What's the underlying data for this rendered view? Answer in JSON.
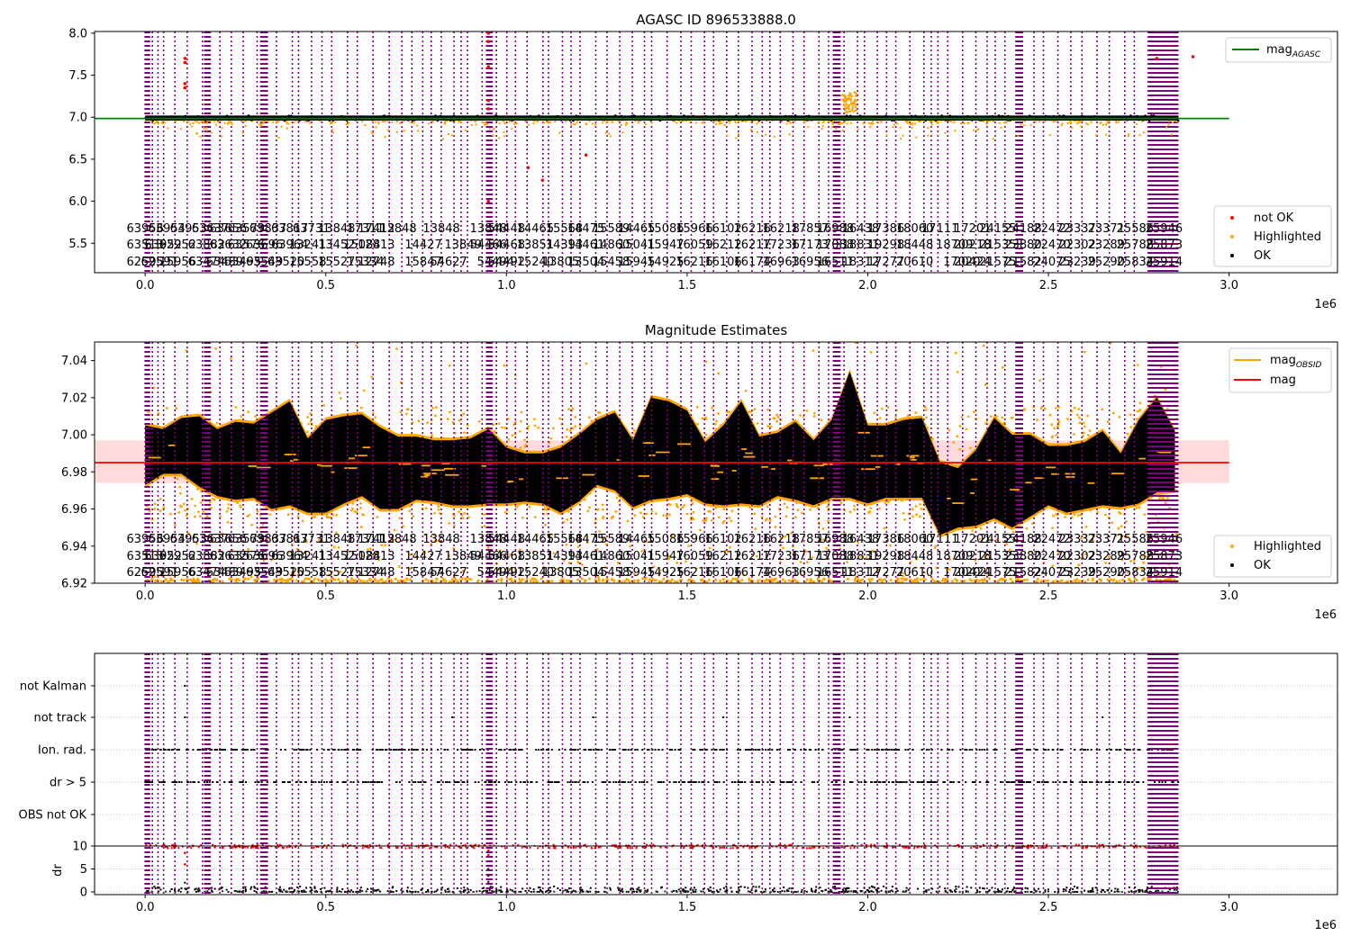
{
  "figure": {
    "offset_label": "1e6"
  },
  "colors": {
    "obsid_line": "#800080",
    "ok": "#000000",
    "highlighted": "#ffa500",
    "not_ok": "#ff0000",
    "mag_agasc": "#008000",
    "mag": "#ff0000",
    "mag_obsid": "#ffa500",
    "band": "#ffb0b0"
  },
  "chart_data": [
    {
      "type": "scatter",
      "title": "AGASC ID 896533888.0",
      "xlabel": "",
      "ylabel": "",
      "xlim": [
        -0.14,
        3.3
      ],
      "ylim": [
        5.15,
        8.02
      ],
      "x_unit_multiplier": "1e6",
      "x_ticks": [
        "0.0",
        "0.5",
        "1.0",
        "1.5",
        "2.0",
        "2.5",
        "3.0"
      ],
      "x_tick_values": [
        0,
        0.5,
        1.0,
        1.5,
        2.0,
        2.5,
        3.0
      ],
      "y_ticks": [
        "5.5",
        "6.0",
        "6.5",
        "7.0",
        "7.5",
        "8.0"
      ],
      "y_tick_values": [
        5.5,
        6.0,
        6.5,
        7.0,
        7.5,
        8.0
      ],
      "legend_top": {
        "placement": "upper right",
        "entries": [
          {
            "label": "mag",
            "subscript": "AGASC",
            "kind": "line",
            "color": "#008000"
          }
        ]
      },
      "legend_bottom": {
        "placement": "lower right",
        "entries": [
          {
            "label": "not OK",
            "kind": "dot",
            "color": "#ff0000"
          },
          {
            "label": "Highlighted",
            "kind": "dot",
            "color": "#ffa500"
          },
          {
            "label": "OK",
            "kind": "dot",
            "color": "#000000"
          }
        ]
      },
      "series": [
        {
          "name": "mag_AGASC",
          "kind": "hline",
          "y": 6.985
        },
        {
          "name": "OK",
          "kind": "band",
          "x_range": [
            0.0,
            2.86
          ],
          "y_center": 6.985,
          "y_spread": 0.02
        },
        {
          "name": "Highlighted",
          "kind": "scatter",
          "y_range": [
            6.75,
            7.02
          ]
        },
        {
          "name": "not OK",
          "kind": "scatter",
          "points": [
            [
              0.11,
              7.7
            ],
            [
              0.11,
              7.65
            ],
            [
              0.11,
              7.4
            ],
            [
              0.11,
              7.35
            ],
            [
              0.95,
              8.0
            ],
            [
              0.95,
              7.9
            ],
            [
              0.95,
              7.6
            ],
            [
              0.95,
              7.2
            ],
            [
              0.95,
              7.1
            ],
            [
              0.95,
              6.0
            ],
            [
              1.06,
              6.4
            ],
            [
              1.1,
              6.25
            ],
            [
              1.22,
              6.55
            ],
            [
              2.8,
              7.7
            ],
            [
              2.9,
              7.72
            ]
          ]
        }
      ]
    },
    {
      "type": "scatter",
      "title": "Magnitude Estimates",
      "xlabel": "",
      "ylabel": "",
      "xlim": [
        -0.14,
        3.3
      ],
      "ylim": [
        6.92,
        7.05
      ],
      "x_unit_multiplier": "1e6",
      "x_ticks": [
        "0.0",
        "0.5",
        "1.0",
        "1.5",
        "2.0",
        "2.5",
        "3.0"
      ],
      "x_tick_values": [
        0,
        0.5,
        1.0,
        1.5,
        2.0,
        2.5,
        3.0
      ],
      "y_ticks": [
        "6.92",
        "6.94",
        "6.96",
        "6.98",
        "7.00",
        "7.02",
        "7.04"
      ],
      "y_tick_values": [
        6.92,
        6.94,
        6.96,
        6.98,
        7.0,
        7.02,
        7.04
      ],
      "legend_top": {
        "placement": "upper right",
        "entries": [
          {
            "label": "mag",
            "subscript": "OBSID",
            "kind": "line",
            "color": "#ffa500"
          },
          {
            "label": "mag",
            "kind": "line",
            "color": "#ff0000"
          }
        ]
      },
      "legend_bottom": {
        "placement": "lower right",
        "entries": [
          {
            "label": "Highlighted",
            "kind": "dot",
            "color": "#ffa500"
          },
          {
            "label": "OK",
            "kind": "dot",
            "color": "#000000"
          }
        ]
      },
      "series": [
        {
          "name": "mag",
          "kind": "hline",
          "y": 6.985,
          "band": [
            6.974,
            6.997
          ]
        },
        {
          "name": "OK",
          "kind": "envelope",
          "x": [
            0.0,
            0.05,
            0.1,
            0.15,
            0.2,
            0.25,
            0.3,
            0.35,
            0.4,
            0.45,
            0.5,
            0.55,
            0.6,
            0.65,
            0.7,
            0.75,
            0.8,
            0.85,
            0.9,
            0.95,
            1.0,
            1.05,
            1.1,
            1.15,
            1.2,
            1.25,
            1.3,
            1.35,
            1.4,
            1.45,
            1.5,
            1.55,
            1.6,
            1.65,
            1.7,
            1.75,
            1.8,
            1.85,
            1.9,
            1.95,
            2.0,
            2.05,
            2.1,
            2.15,
            2.2,
            2.25,
            2.3,
            2.35,
            2.4,
            2.45,
            2.5,
            2.55,
            2.6,
            2.65,
            2.7,
            2.75,
            2.8,
            2.85
          ],
          "upper": [
            7.005,
            7.003,
            7.009,
            7.01,
            7.003,
            7.007,
            7.006,
            7.012,
            7.018,
            6.998,
            7.008,
            7.01,
            7.011,
            7.004,
            6.999,
            6.999,
            6.997,
            6.997,
            6.998,
            7.003,
            6.993,
            6.99,
            6.99,
            6.993,
            7.0,
            7.008,
            7.012,
            6.997,
            7.02,
            7.018,
            7.013,
            6.996,
            7.005,
            7.018,
            6.999,
            7.001,
            7.007,
            6.997,
            7.008,
            7.034,
            7.005,
            7.005,
            7.008,
            7.009,
            6.985,
            6.982,
            6.992,
            7.009,
            7.0,
            7.0,
            6.994,
            6.994,
            6.996,
            7.002,
            6.99,
            7.008,
            7.02,
            7.002
          ],
          "lower": [
            6.973,
            6.979,
            6.979,
            6.972,
            6.967,
            6.965,
            6.966,
            6.96,
            6.962,
            6.958,
            6.958,
            6.963,
            6.967,
            6.96,
            6.96,
            6.965,
            6.964,
            6.962,
            6.962,
            6.963,
            6.963,
            6.964,
            6.963,
            6.958,
            6.964,
            6.973,
            6.97,
            6.961,
            6.965,
            6.966,
            6.968,
            6.963,
            6.962,
            6.963,
            6.962,
            6.967,
            6.965,
            6.962,
            6.966,
            6.966,
            6.963,
            6.966,
            6.966,
            6.966,
            6.946,
            6.95,
            6.951,
            6.955,
            6.95,
            6.956,
            6.962,
            6.958,
            6.96,
            6.962,
            6.961,
            6.963,
            6.969,
            6.97
          ]
        },
        {
          "name": "Highlighted",
          "kind": "scatter",
          "y_range": [
            6.92,
            7.05
          ]
        },
        {
          "name": "mag_OBSID",
          "kind": "steps"
        }
      ]
    },
    {
      "type": "scatter",
      "title": "",
      "xlabel": "",
      "ylabel": "",
      "xlim": [
        -0.14,
        3.3
      ],
      "x_unit_multiplier": "1e6",
      "x_ticks": [
        "0.0",
        "0.5",
        "1.0",
        "1.5",
        "2.0",
        "2.5",
        "3.0"
      ],
      "x_tick_values": [
        0,
        0.5,
        1.0,
        1.5,
        2.0,
        2.5,
        3.0
      ],
      "flag_rows": [
        "not Kalman",
        "not track",
        "Ion. rad.",
        "dr > 5",
        "OBS not OK"
      ],
      "series": [
        {
          "name": "not Kalman",
          "kind": "flag",
          "points": [
            0.11,
            0.95
          ]
        },
        {
          "name": "not track",
          "kind": "flag",
          "points": [
            0.11,
            0.85,
            0.95,
            1.24,
            1.6,
            1.95,
            2.65,
            2.8,
            2.85
          ]
        },
        {
          "name": "Ion. rad.",
          "kind": "flag-dense"
        },
        {
          "name": "dr > 5",
          "kind": "flag-dense"
        },
        {
          "name": "OBS not OK",
          "kind": "flag",
          "points": []
        }
      ]
    },
    {
      "type": "scatter",
      "title": "",
      "xlabel": "",
      "ylabel": "dr",
      "xlim": [
        -0.14,
        3.3
      ],
      "ylim": [
        -0.5,
        11
      ],
      "x_unit_multiplier": "1e6",
      "x_ticks": [
        "0.0",
        "0.5",
        "1.0",
        "1.5",
        "2.0",
        "2.5",
        "3.0"
      ],
      "x_tick_values": [
        0,
        0.5,
        1.0,
        1.5,
        2.0,
        2.5,
        3.0
      ],
      "y_ticks": [
        "0",
        "5",
        "10"
      ],
      "y_tick_values": [
        0,
        5,
        10
      ],
      "series": [
        {
          "name": "threshold",
          "kind": "hline",
          "y": 10
        },
        {
          "name": "OK",
          "kind": "scatter",
          "y_range": [
            0,
            1.2
          ]
        },
        {
          "name": "not OK",
          "kind": "scatter",
          "y_range": [
            9.3,
            10.3
          ]
        }
      ]
    }
  ],
  "obsid_labels": [
    {
      "x": 0.0,
      "row": 0,
      "text": "63956"
    },
    {
      "x": 0.0,
      "row": 1,
      "text": "63513"
    },
    {
      "x": 0.0,
      "row": 2,
      "text": "62595"
    },
    {
      "x": 0.06,
      "row": 0,
      "text": "63954"
    },
    {
      "x": 0.05,
      "row": 1,
      "text": "63952"
    },
    {
      "x": 0.04,
      "row": 2,
      "text": "62591"
    },
    {
      "x": 0.12,
      "row": 0,
      "text": "63953"
    },
    {
      "x": 0.09,
      "row": 1,
      "text": "62952"
    },
    {
      "x": 0.09,
      "row": 2,
      "text": "15956"
    },
    {
      "x": 0.18,
      "row": 0,
      "text": "63637"
    },
    {
      "x": 0.17,
      "row": 1,
      "text": "63882"
    },
    {
      "x": 0.17,
      "row": 2,
      "text": "63474"
    },
    {
      "x": 0.23,
      "row": 0,
      "text": "63656"
    },
    {
      "x": 0.23,
      "row": 1,
      "text": "63632"
    },
    {
      "x": 0.22,
      "row": 2,
      "text": "63489"
    },
    {
      "x": 0.28,
      "row": 0,
      "text": "63579"
    },
    {
      "x": 0.28,
      "row": 1,
      "text": "63576"
    },
    {
      "x": 0.27,
      "row": 2,
      "text": "63495"
    },
    {
      "x": 0.34,
      "row": 0,
      "text": "63837"
    },
    {
      "x": 0.33,
      "row": 1,
      "text": "63696"
    },
    {
      "x": 0.33,
      "row": 2,
      "text": "63549"
    },
    {
      "x": 0.4,
      "row": 0,
      "text": "63817"
    },
    {
      "x": 0.4,
      "row": 1,
      "text": "63964"
    },
    {
      "x": 0.39,
      "row": 2,
      "text": "63520"
    },
    {
      "x": 0.46,
      "row": 0,
      "text": "63731"
    },
    {
      "x": 0.45,
      "row": 1,
      "text": "13241"
    },
    {
      "x": 0.45,
      "row": 2,
      "text": "15558"
    },
    {
      "x": 0.53,
      "row": 0,
      "text": "13848"
    },
    {
      "x": 0.53,
      "row": 1,
      "text": "13452"
    },
    {
      "x": 0.53,
      "row": 2,
      "text": "15527"
    },
    {
      "x": 0.61,
      "row": 0,
      "text": "17311"
    },
    {
      "x": 0.6,
      "row": 1,
      "text": "15084"
    },
    {
      "x": 0.61,
      "row": 2,
      "text": "15334"
    },
    {
      "x": 0.64,
      "row": 0,
      "text": "17412"
    },
    {
      "x": 0.64,
      "row": 1,
      "text": "12813"
    },
    {
      "x": 0.64,
      "row": 2,
      "text": "12748"
    },
    {
      "x": 0.7,
      "row": 0,
      "text": "13848"
    },
    {
      "x": 0.77,
      "row": 1,
      "text": "14427"
    },
    {
      "x": 0.77,
      "row": 2,
      "text": "15847"
    },
    {
      "x": 0.82,
      "row": 0,
      "text": "13848"
    },
    {
      "x": 0.88,
      "row": 1,
      "text": "13849"
    },
    {
      "x": 0.84,
      "row": 2,
      "text": "54627"
    },
    {
      "x": 0.95,
      "row": 0,
      "text": "13848"
    },
    {
      "x": 0.95,
      "row": 1,
      "text": "54466"
    },
    {
      "x": 0.97,
      "row": 2,
      "text": "54494"
    },
    {
      "x": 1.0,
      "row": 0,
      "text": "54448"
    },
    {
      "x": 1.0,
      "row": 1,
      "text": "54468"
    },
    {
      "x": 1.0,
      "row": 2,
      "text": "54492"
    },
    {
      "x": 1.08,
      "row": 0,
      "text": "14465"
    },
    {
      "x": 1.08,
      "row": 1,
      "text": "13851"
    },
    {
      "x": 1.08,
      "row": 2,
      "text": "15240"
    },
    {
      "x": 1.16,
      "row": 0,
      "text": "15568"
    },
    {
      "x": 1.16,
      "row": 1,
      "text": "14393"
    },
    {
      "x": 1.15,
      "row": 2,
      "text": "13805"
    },
    {
      "x": 1.22,
      "row": 0,
      "text": "14475"
    },
    {
      "x": 1.22,
      "row": 1,
      "text": "14461"
    },
    {
      "x": 1.22,
      "row": 2,
      "text": "13504"
    },
    {
      "x": 1.29,
      "row": 0,
      "text": "15589"
    },
    {
      "x": 1.29,
      "row": 1,
      "text": "14860"
    },
    {
      "x": 1.29,
      "row": 2,
      "text": "15458"
    },
    {
      "x": 1.36,
      "row": 0,
      "text": "14465"
    },
    {
      "x": 1.36,
      "row": 1,
      "text": "15041"
    },
    {
      "x": 1.36,
      "row": 2,
      "text": "15945"
    },
    {
      "x": 1.44,
      "row": 0,
      "text": "15086"
    },
    {
      "x": 1.44,
      "row": 1,
      "text": "15947"
    },
    {
      "x": 1.44,
      "row": 2,
      "text": "14925"
    },
    {
      "x": 1.52,
      "row": 0,
      "text": "15966"
    },
    {
      "x": 1.52,
      "row": 1,
      "text": "16059"
    },
    {
      "x": 1.52,
      "row": 2,
      "text": "16216"
    },
    {
      "x": 1.6,
      "row": 0,
      "text": "16102"
    },
    {
      "x": 1.6,
      "row": 1,
      "text": "16212"
    },
    {
      "x": 1.6,
      "row": 2,
      "text": "16106"
    },
    {
      "x": 1.68,
      "row": 0,
      "text": "16216"
    },
    {
      "x": 1.68,
      "row": 1,
      "text": "16217"
    },
    {
      "x": 1.68,
      "row": 2,
      "text": "16174"
    },
    {
      "x": 1.76,
      "row": 0,
      "text": "16218"
    },
    {
      "x": 1.76,
      "row": 1,
      "text": "17236"
    },
    {
      "x": 1.76,
      "row": 2,
      "text": "16963"
    },
    {
      "x": 1.84,
      "row": 0,
      "text": "17857"
    },
    {
      "x": 1.84,
      "row": 1,
      "text": "17173"
    },
    {
      "x": 1.84,
      "row": 2,
      "text": "16956"
    },
    {
      "x": 1.91,
      "row": 0,
      "text": "16988"
    },
    {
      "x": 1.91,
      "row": 1,
      "text": "17088"
    },
    {
      "x": 1.91,
      "row": 2,
      "text": "16511"
    },
    {
      "x": 1.98,
      "row": 0,
      "text": "16438"
    },
    {
      "x": 1.98,
      "row": 1,
      "text": "18831"
    },
    {
      "x": 1.98,
      "row": 2,
      "text": "18312"
    },
    {
      "x": 2.05,
      "row": 0,
      "text": "17386"
    },
    {
      "x": 2.05,
      "row": 1,
      "text": "19298"
    },
    {
      "x": 2.05,
      "row": 2,
      "text": "17277"
    },
    {
      "x": 2.13,
      "row": 0,
      "text": "18060"
    },
    {
      "x": 2.13,
      "row": 1,
      "text": "18448"
    },
    {
      "x": 2.13,
      "row": 2,
      "text": "20610"
    },
    {
      "x": 2.2,
      "row": 0,
      "text": "17111"
    },
    {
      "x": 2.24,
      "row": 1,
      "text": "18709"
    },
    {
      "x": 2.26,
      "row": 2,
      "text": "17020"
    },
    {
      "x": 2.29,
      "row": 0,
      "text": "17201"
    },
    {
      "x": 2.29,
      "row": 1,
      "text": "20218"
    },
    {
      "x": 2.29,
      "row": 2,
      "text": "20424"
    },
    {
      "x": 2.36,
      "row": 0,
      "text": "24155"
    },
    {
      "x": 2.36,
      "row": 1,
      "text": "21535"
    },
    {
      "x": 2.36,
      "row": 2,
      "text": "21575"
    },
    {
      "x": 2.43,
      "row": 0,
      "text": "24188"
    },
    {
      "x": 2.43,
      "row": 1,
      "text": "23880"
    },
    {
      "x": 2.43,
      "row": 2,
      "text": "21582"
    },
    {
      "x": 2.51,
      "row": 0,
      "text": "22472"
    },
    {
      "x": 2.51,
      "row": 1,
      "text": "22470"
    },
    {
      "x": 2.51,
      "row": 2,
      "text": "24075"
    },
    {
      "x": 2.58,
      "row": 0,
      "text": "23337"
    },
    {
      "x": 2.58,
      "row": 1,
      "text": "22302"
    },
    {
      "x": 2.58,
      "row": 2,
      "text": "23239"
    },
    {
      "x": 2.66,
      "row": 0,
      "text": "23371"
    },
    {
      "x": 2.66,
      "row": 1,
      "text": "23289"
    },
    {
      "x": 2.66,
      "row": 2,
      "text": "25290"
    },
    {
      "x": 2.74,
      "row": 0,
      "text": "25586"
    },
    {
      "x": 2.74,
      "row": 1,
      "text": "25788"
    },
    {
      "x": 2.74,
      "row": 2,
      "text": "25834"
    },
    {
      "x": 2.82,
      "row": 0,
      "text": "25946"
    },
    {
      "x": 2.82,
      "row": 1,
      "text": "25873"
    },
    {
      "x": 2.82,
      "row": 2,
      "text": "25914"
    }
  ]
}
